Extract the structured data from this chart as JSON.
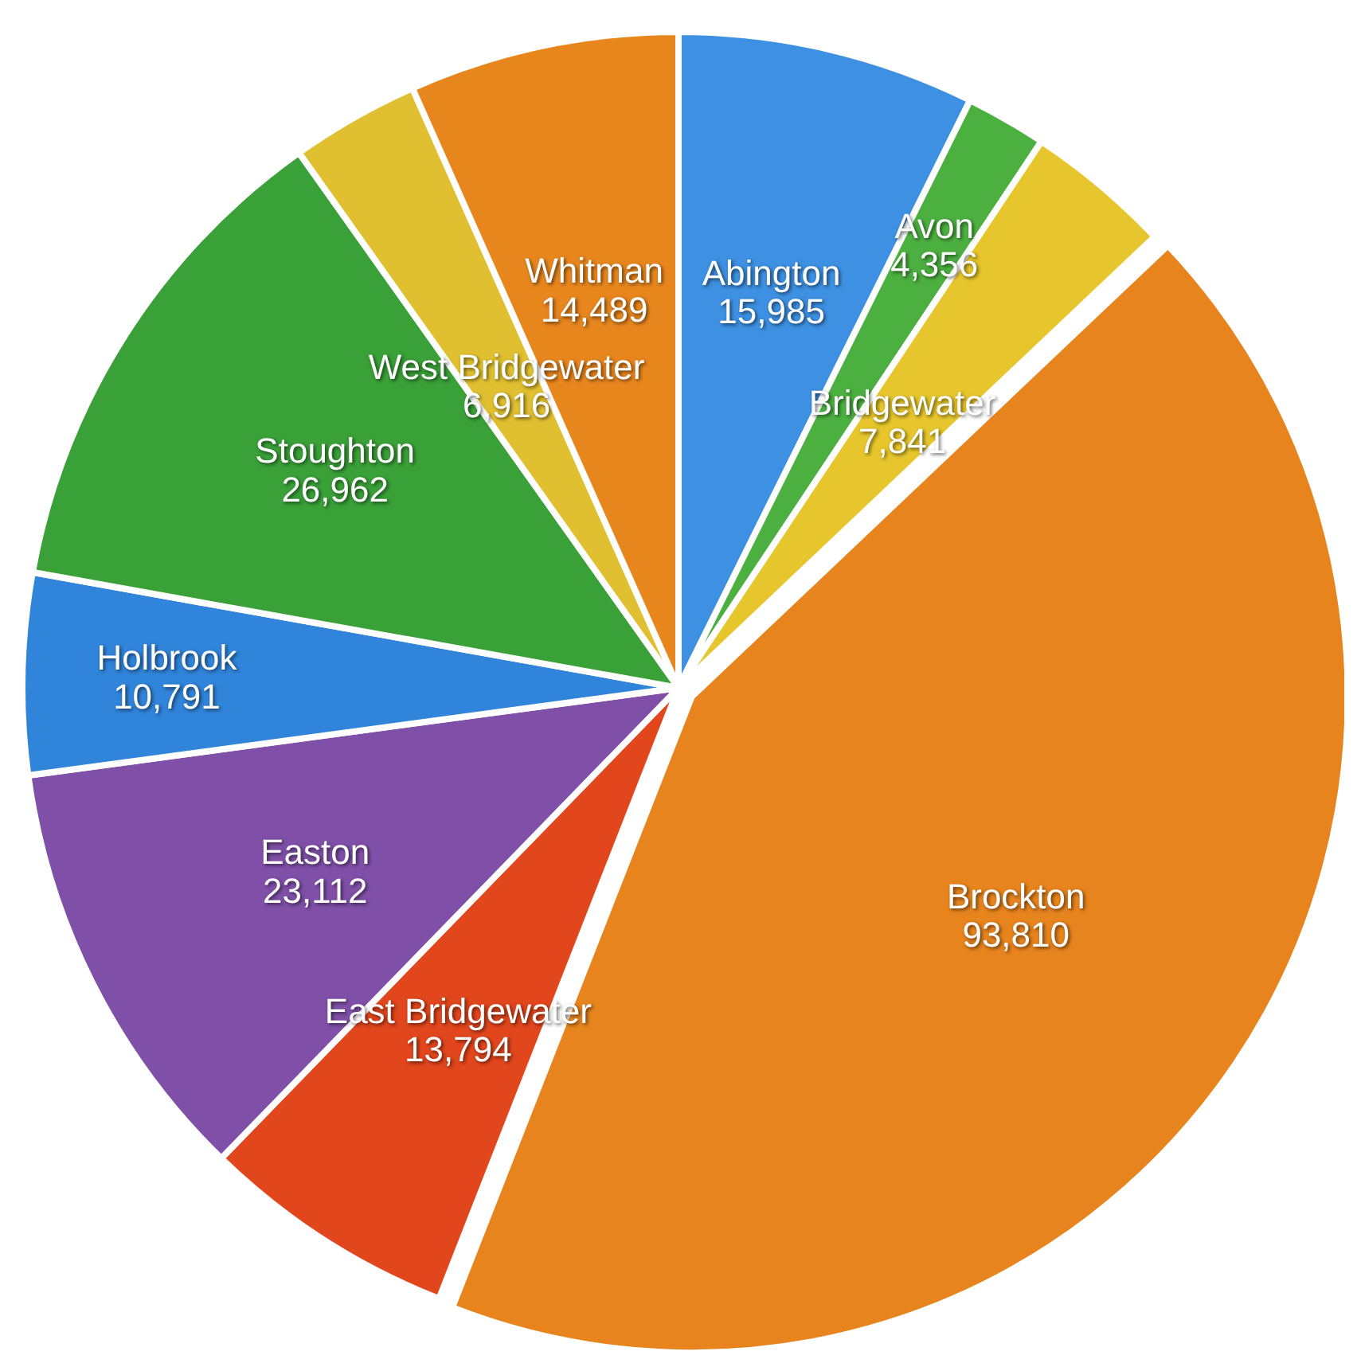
{
  "chart_data": {
    "type": "pie",
    "categories": [
      "Abington",
      "Avon",
      "Bridgewater",
      "Brockton",
      "East Bridgewater",
      "Easton",
      "Holbrook",
      "Stoughton",
      "West Bridgewater",
      "Whitman"
    ],
    "values": [
      15985,
      4356,
      7841,
      93810,
      13794,
      23112,
      10791,
      26962,
      6916,
      14489
    ],
    "value_labels": [
      "15,985",
      "4,356",
      "7,841",
      "93,810",
      "13,794",
      "23,112",
      "10,791",
      "26,962",
      "6,916",
      "14,489"
    ],
    "colors": [
      "#3d90e2",
      "#4cb040",
      "#e6c62c",
      "#e8841e",
      "#e2461c",
      "#8050a8",
      "#3084da",
      "#3aa038",
      "#e0c030",
      "#e8861e"
    ]
  }
}
